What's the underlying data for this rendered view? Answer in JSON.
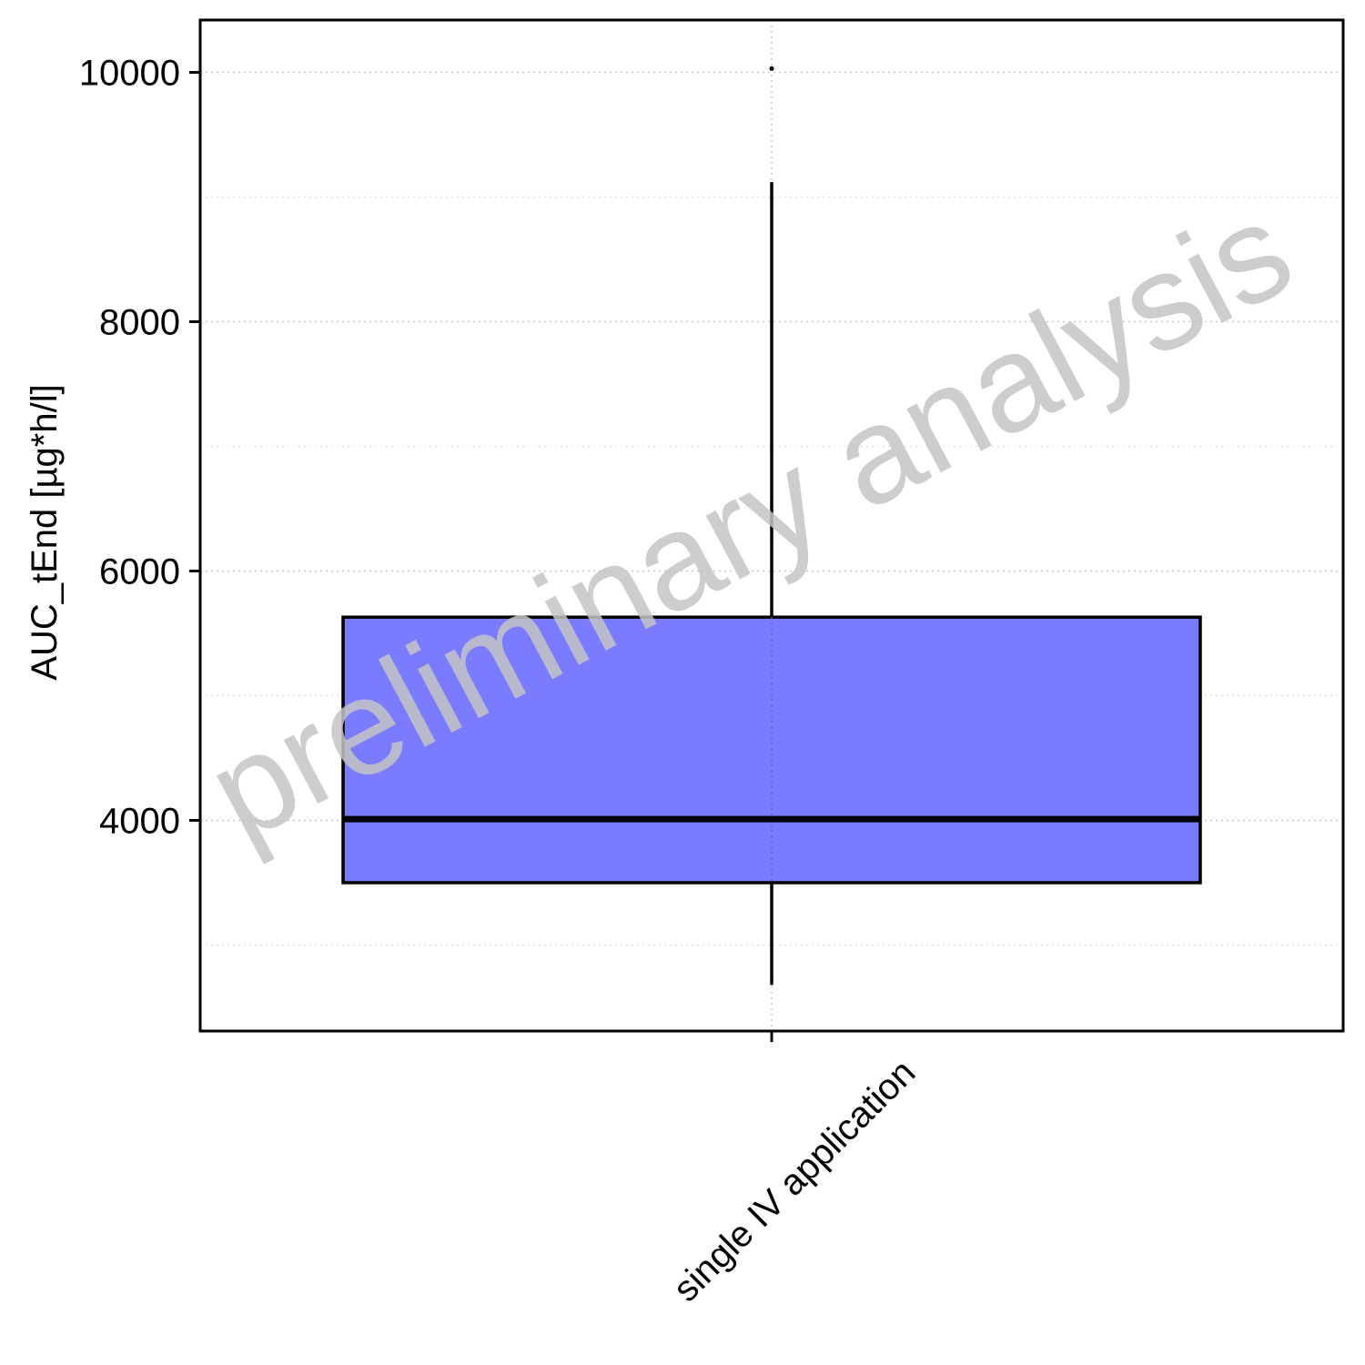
{
  "chart_data": {
    "type": "box",
    "title": "",
    "xlabel": "",
    "ylabel": "AUC_tEnd [µg*h/l]",
    "ylim": [
      2310,
      10420
    ],
    "yticks": [
      4000,
      6000,
      8000,
      10000
    ],
    "y_minor_grid": [
      3000,
      5000,
      7000,
      9000
    ],
    "grid": "dotted",
    "categories": [
      "single IV application"
    ],
    "boxes": [
      {
        "category": "single IV application",
        "whisker_low": 2680,
        "q1": 3500,
        "median": 4010,
        "q3": 5630,
        "whisker_high": 9120,
        "outliers": [
          10030
        ]
      }
    ],
    "box_fill": "#7b7bff",
    "box_stroke": "#000000"
  },
  "watermark": "preliminary analysis",
  "watermark_color": "#c4c4c4"
}
